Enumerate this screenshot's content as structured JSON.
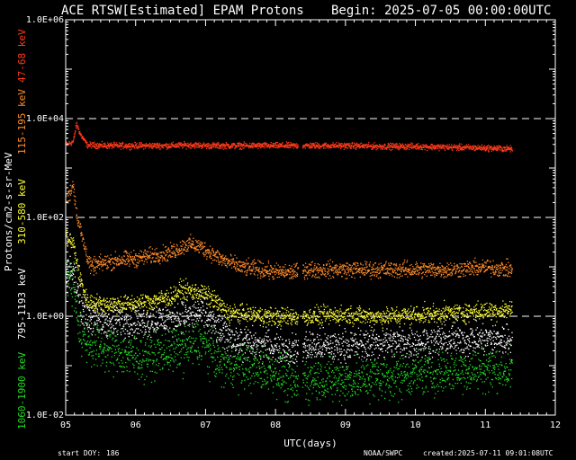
{
  "chart_data": {
    "type": "scatter",
    "title": "ACE RTSW[Estimated] EPAM Protons",
    "begin_label": "Begin: 2025-07-05 00:00:00UTC",
    "xlabel": "UTC(days)",
    "ylabel": "Protons/cm2-s-sr-MeV",
    "x_ticks": [
      "05",
      "06",
      "07",
      "08",
      "09",
      "10",
      "11",
      "12"
    ],
    "xlim": [
      5,
      12
    ],
    "y_ticks": [
      "1.0E-02",
      "1.0E+00",
      "1.0E+02",
      "1.0E+04",
      "1.0E+06"
    ],
    "y_scale": "log",
    "ylim": [
      0.01,
      1000000
    ],
    "dashed_reference_levels": [
      1,
      100,
      10000
    ],
    "data_end_day": 11.38,
    "gap": [
      8.32,
      8.38
    ],
    "series": [
      {
        "name": "47-68 keV",
        "color": "#ff3a1a",
        "x": [
          5.0,
          5.1,
          5.15,
          5.2,
          5.3,
          5.6,
          6.0,
          6.5,
          6.8,
          7.0,
          7.5,
          8.0,
          8.3,
          8.4,
          9.0,
          9.5,
          10.0,
          10.5,
          11.0,
          11.38
        ],
        "values": [
          3000,
          3500,
          8000,
          5000,
          3000,
          2900,
          2900,
          2900,
          3000,
          2900,
          2900,
          2900,
          2900,
          2900,
          2900,
          2800,
          2800,
          2700,
          2600,
          2500
        ]
      },
      {
        "name": "115-195 keV",
        "color": "#ff8a28",
        "x": [
          5.0,
          5.1,
          5.15,
          5.25,
          5.35,
          5.5,
          5.75,
          6.0,
          6.3,
          6.5,
          6.75,
          6.95,
          7.2,
          7.5,
          7.8,
          8.0,
          8.3,
          8.4,
          8.8,
          9.2,
          9.6,
          10.0,
          10.5,
          11.0,
          11.38
        ],
        "values": [
          200,
          500,
          120,
          30,
          10,
          12,
          14,
          15,
          18,
          20,
          30,
          25,
          15,
          10,
          9,
          8,
          8,
          9,
          9,
          9,
          9,
          9,
          9,
          10,
          9
        ]
      },
      {
        "name": "310-580 keV",
        "color": "#ffff30",
        "x": [
          5.0,
          5.1,
          5.2,
          5.3,
          5.5,
          6.0,
          6.5,
          6.65,
          6.95,
          7.15,
          7.3,
          8.0,
          8.3,
          8.4,
          9.0,
          9.5,
          10.0,
          10.5,
          11.0,
          11.38
        ],
        "values": [
          40,
          30,
          6,
          2.0,
          1.8,
          1.8,
          2.5,
          3.5,
          3.0,
          2.0,
          1.2,
          1.0,
          1.0,
          1.0,
          1.1,
          1.0,
          1.1,
          1.2,
          1.3,
          1.4
        ]
      },
      {
        "name": "795-1193 keV",
        "color": "#ffffff",
        "x": [
          5.0,
          5.1,
          5.2,
          5.3,
          5.5,
          6.0,
          6.5,
          6.95,
          7.2,
          7.5,
          8.0,
          8.3,
          8.4,
          9.0,
          9.5,
          10.0,
          10.5,
          11.0,
          11.38
        ],
        "values": [
          10,
          8,
          2,
          1.0,
          0.8,
          0.8,
          0.9,
          1.2,
          0.5,
          0.3,
          0.25,
          0.2,
          0.25,
          0.25,
          0.3,
          0.3,
          0.35,
          0.35,
          0.35
        ]
      },
      {
        "name": "1060-1900 keV",
        "color": "#22dd22",
        "x": [
          5.0,
          5.1,
          5.2,
          5.3,
          5.5,
          6.0,
          6.5,
          6.95,
          7.2,
          7.5,
          8.0,
          8.3,
          8.4,
          9.0,
          9.5,
          10.0,
          10.5,
          11.0,
          11.38
        ],
        "values": [
          6,
          5,
          0.5,
          0.3,
          0.25,
          0.15,
          0.2,
          0.3,
          0.12,
          0.1,
          0.08,
          0.04,
          0.06,
          0.05,
          0.06,
          0.07,
          0.08,
          0.09,
          0.08
        ]
      }
    ]
  },
  "footer": {
    "start_doy_label": "start DOY:",
    "start_doy_value": "186",
    "source": "NOAA/SWPC",
    "created": "created:2025-07-11 09:01:08UTC"
  }
}
